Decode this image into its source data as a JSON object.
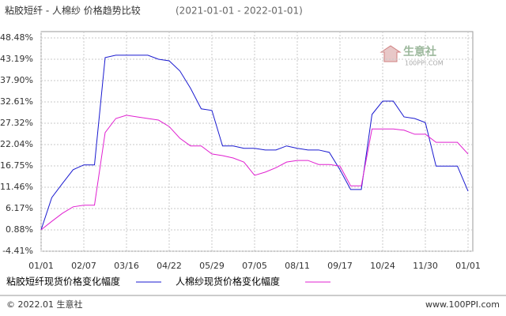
{
  "chart_data": {
    "type": "line",
    "title": "粘胶短纤 - 人棉纱 价格趋势比较",
    "subtitle": "(2021-01-01 - 2022-01-01)",
    "watermark": "生意社",
    "watermark_url": "100PPI.COM",
    "footer_left": "© 2022.01 生意社",
    "footer_right": "www.100PPI.com",
    "categories": [
      "01/01",
      null,
      null,
      null,
      "02/07",
      null,
      null,
      null,
      "03/16",
      null,
      null,
      null,
      "04/22",
      null,
      null,
      null,
      "05/29",
      null,
      null,
      null,
      "07/05",
      null,
      null,
      null,
      "08/11",
      null,
      null,
      null,
      "09/17",
      null,
      null,
      null,
      "10/24",
      null,
      null,
      null,
      "11/30",
      null,
      null,
      null,
      "01/01"
    ],
    "ylim": [
      -4.41,
      48.48
    ],
    "yticks": [
      {
        "value": -4.41,
        "label": "-4.41%"
      },
      {
        "value": 0.88,
        "label": "0.88%"
      },
      {
        "value": 6.17,
        "label": "6.17%"
      },
      {
        "value": 11.46,
        "label": "11.46%"
      },
      {
        "value": 16.75,
        "label": "16.75%"
      },
      {
        "value": 22.04,
        "label": "22.04%"
      },
      {
        "value": 27.32,
        "label": "27.32%"
      },
      {
        "value": 32.61,
        "label": "32.61%"
      },
      {
        "value": 37.9,
        "label": "37.90%"
      },
      {
        "value": 43.19,
        "label": "43.19%"
      },
      {
        "value": 48.48,
        "label": "48.48%"
      }
    ],
    "grid": true,
    "series": [
      {
        "name": "粘胶短纤现货价格变化幅度",
        "color": "#1a1ad0",
        "values": [
          0.9,
          8.9,
          12.4,
          15.8,
          17.0,
          17.0,
          43.6,
          44.2,
          44.2,
          44.2,
          44.2,
          43.2,
          42.8,
          40.3,
          36.0,
          30.9,
          30.5,
          21.7,
          21.7,
          21.1,
          21.1,
          20.7,
          20.7,
          21.7,
          21.1,
          20.7,
          20.7,
          20.1,
          15.8,
          10.9,
          10.9,
          29.5,
          32.8,
          32.8,
          28.9,
          28.5,
          27.5,
          16.7,
          16.7,
          16.7,
          10.5
        ]
      },
      {
        "name": "人棉纱现货价格变化幅度",
        "color": "#e020d0",
        "values": [
          0.9,
          3.0,
          5.0,
          6.6,
          7.0,
          7.0,
          25.0,
          28.5,
          29.3,
          28.9,
          28.5,
          28.1,
          26.5,
          23.6,
          21.7,
          21.7,
          19.7,
          19.3,
          18.7,
          17.7,
          14.4,
          15.2,
          16.3,
          17.7,
          18.1,
          18.1,
          17.1,
          17.1,
          16.7,
          11.8,
          11.8,
          25.9,
          25.9,
          25.9,
          25.6,
          24.6,
          24.6,
          22.6,
          22.6,
          22.6,
          19.7
        ]
      }
    ]
  }
}
